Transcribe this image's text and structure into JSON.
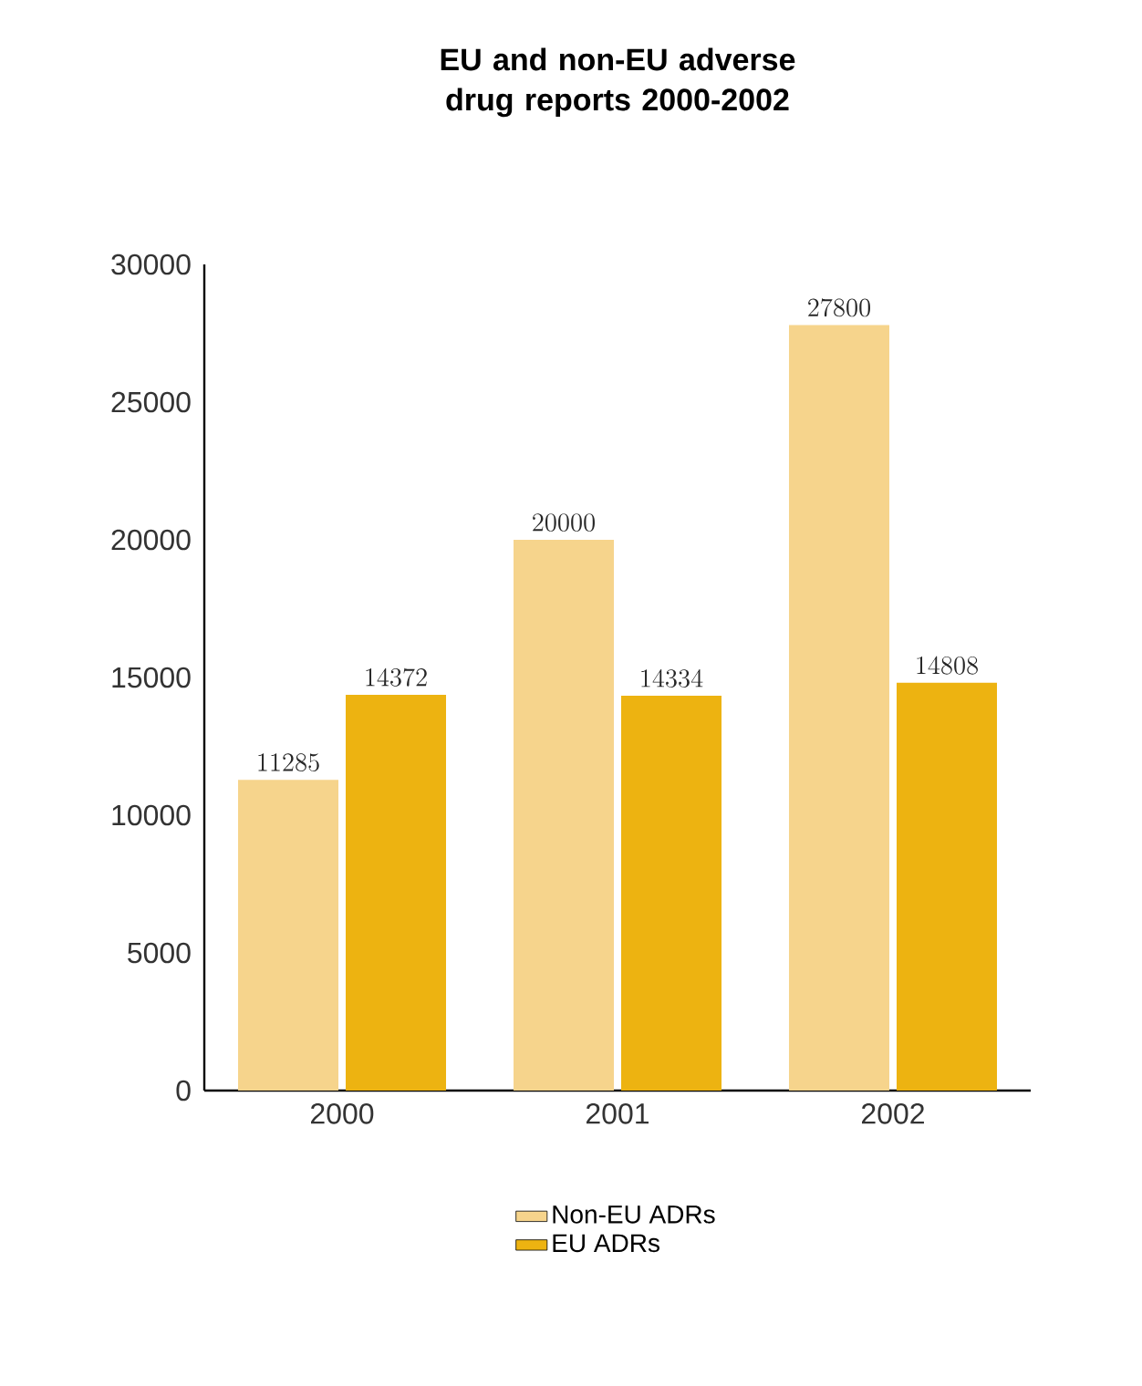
{
  "chart_data": {
    "type": "bar",
    "title": "EU and non-EU adverse drug reports 2000-2002",
    "categories": [
      "2000",
      "2001",
      "2002"
    ],
    "series": [
      {
        "name": "Non-EU ADRs",
        "color": "#f6d48c",
        "values": [
          11285,
          20000,
          27800
        ]
      },
      {
        "name": "EU ADRs",
        "color": "#edb311",
        "values": [
          14372,
          14334,
          14808
        ]
      }
    ],
    "ylim": [
      0,
      30000
    ],
    "yticks": [
      0,
      5000,
      10000,
      15000,
      20000,
      25000,
      30000
    ],
    "data_labels": true,
    "legend": "bottom"
  }
}
